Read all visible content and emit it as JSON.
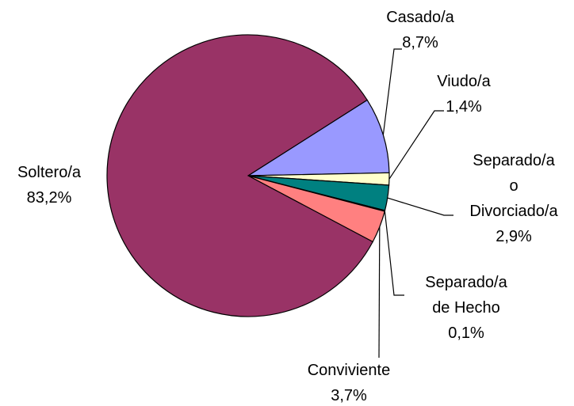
{
  "chart_data": {
    "type": "pie",
    "categories": [
      "Casado/a",
      "Viudo/a",
      "Separado/a\no\nDivorciado/a",
      "Separado/a\nde Hecho",
      "Conviviente",
      "Soltero/a"
    ],
    "values": [
      8.7,
      1.4,
      2.9,
      0.1,
      3.7,
      83.2
    ],
    "value_labels": [
      "8,7%",
      "1,4%",
      "2,9%",
      "0,1%",
      "3,7%",
      "83,2%"
    ],
    "colors": [
      "#9999ff",
      "#ffffcc",
      "#008080",
      "#ccffff",
      "#ff8080",
      "#993366"
    ]
  }
}
